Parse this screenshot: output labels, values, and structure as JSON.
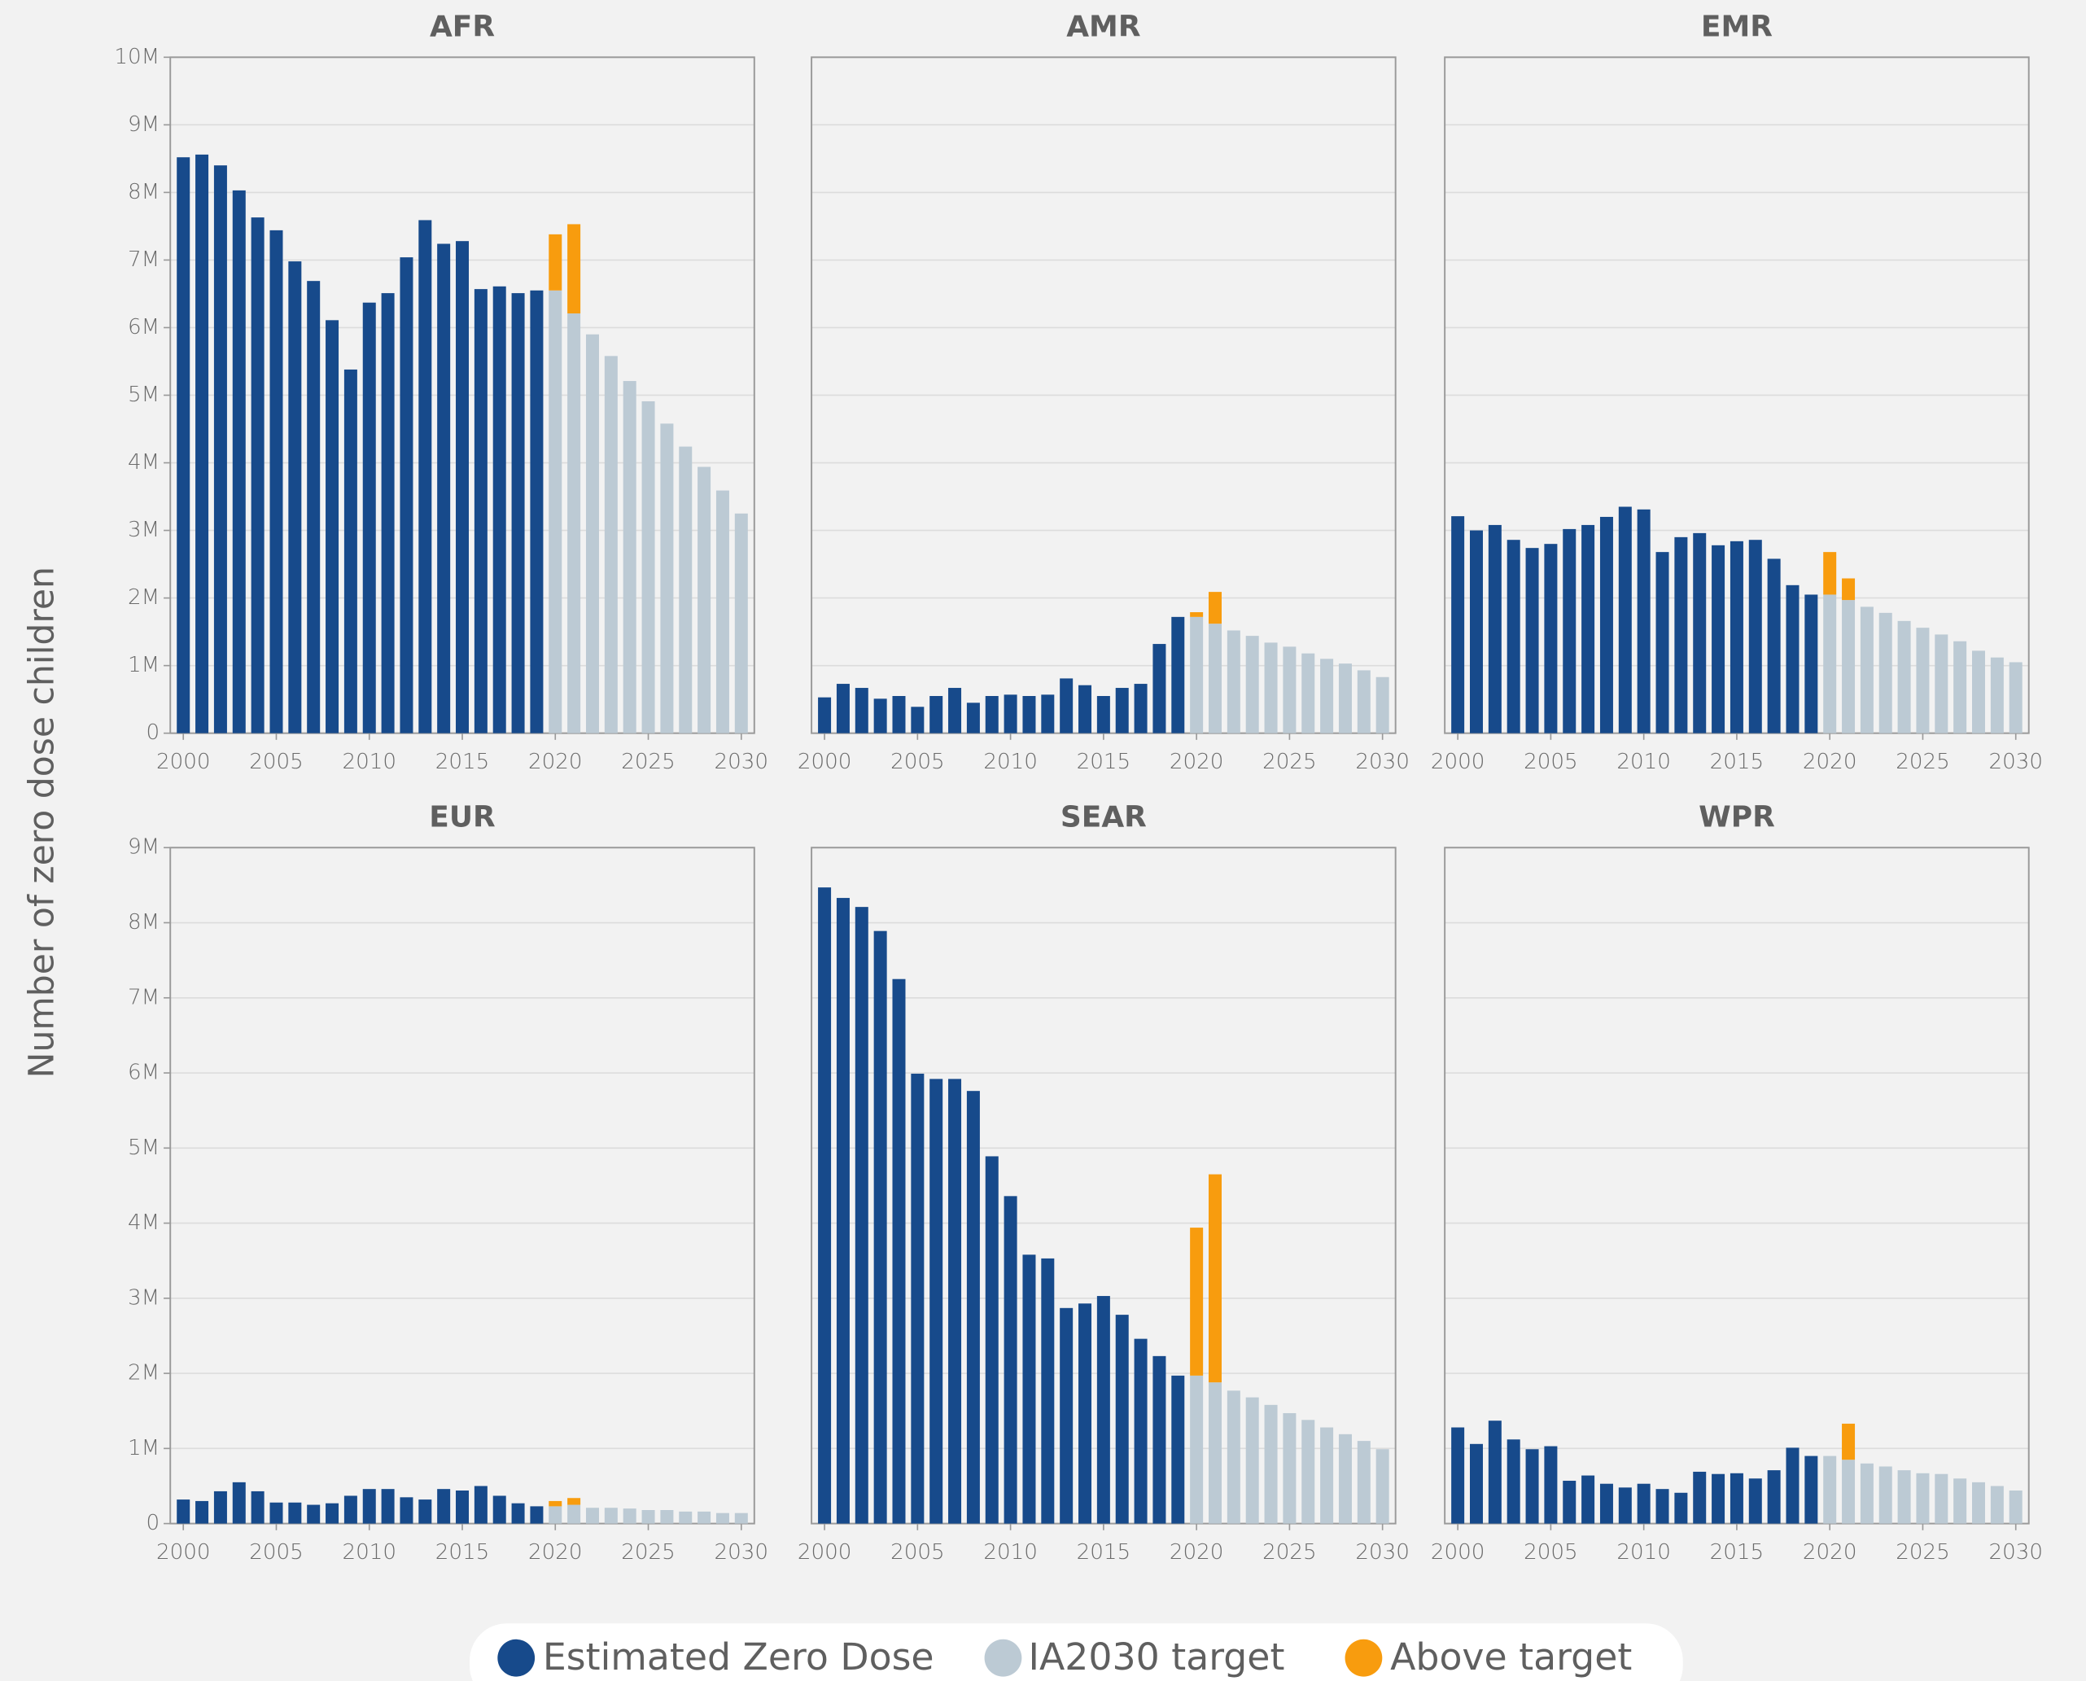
{
  "chart_data": [
    {
      "type": "bar",
      "title": "AFR",
      "ylabel": "Number of zero dose children",
      "x": [
        2000,
        2001,
        2002,
        2003,
        2004,
        2005,
        2006,
        2007,
        2008,
        2009,
        2010,
        2011,
        2012,
        2013,
        2014,
        2015,
        2016,
        2017,
        2018,
        2019,
        2020,
        2021,
        2022,
        2023,
        2024,
        2025,
        2026,
        2027,
        2028,
        2029,
        2030
      ],
      "xlim": [
        1999.3,
        2030.7
      ],
      "xticks": [
        2000,
        2005,
        2010,
        2015,
        2020,
        2025,
        2030
      ],
      "ylim": [
        0,
        10000000
      ],
      "show_ytick_labels": true,
      "grid": true,
      "yticks": [
        0,
        {
          "value": 1000000,
          "label": "1M"
        },
        {
          "value": 2000000,
          "label": "2M"
        },
        {
          "value": 3000000,
          "label": "3M"
        },
        {
          "value": 4000000,
          "label": "4M"
        },
        {
          "value": 5000000,
          "label": "5M"
        },
        {
          "value": 6000000,
          "label": "6M"
        },
        {
          "value": 7000000,
          "label": "7M"
        },
        {
          "value": 8000000,
          "label": "8M"
        },
        {
          "value": 9000000,
          "label": "9M"
        },
        {
          "value": 10000000,
          "label": "10M"
        }
      ],
      "series": [
        {
          "name": "Estimated Zero Dose",
          "color": "#174a8b",
          "values": [
            8520000,
            8560000,
            8400000,
            8030000,
            7630000,
            7440000,
            6980000,
            6690000,
            6110000,
            5380000,
            6370000,
            6510000,
            7040000,
            7590000,
            7240000,
            7280000,
            6570000,
            6610000,
            6510000,
            6550000,
            null,
            null,
            null,
            null,
            null,
            null,
            null,
            null,
            null,
            null,
            null
          ]
        },
        {
          "name": "IA2030 target",
          "color": "#bccad4",
          "values": [
            null,
            null,
            null,
            null,
            null,
            null,
            null,
            null,
            null,
            null,
            null,
            null,
            null,
            null,
            null,
            null,
            null,
            null,
            null,
            null,
            6550000,
            6210000,
            5900000,
            5580000,
            5210000,
            4910000,
            4580000,
            4240000,
            3940000,
            3590000,
            3250000
          ]
        },
        {
          "name": "Above target",
          "color": "#f89c0e",
          "values": [
            null,
            null,
            null,
            null,
            null,
            null,
            null,
            null,
            null,
            null,
            null,
            null,
            null,
            null,
            null,
            null,
            null,
            null,
            null,
            null,
            830000,
            1320000,
            null,
            null,
            null,
            null,
            null,
            null,
            null,
            null,
            null
          ]
        }
      ]
    },
    {
      "type": "bar",
      "title": "AMR",
      "x": [
        2000,
        2001,
        2002,
        2003,
        2004,
        2005,
        2006,
        2007,
        2008,
        2009,
        2010,
        2011,
        2012,
        2013,
        2014,
        2015,
        2016,
        2017,
        2018,
        2019,
        2020,
        2021,
        2022,
        2023,
        2024,
        2025,
        2026,
        2027,
        2028,
        2029,
        2030
      ],
      "xlim": [
        1999.3,
        2030.7
      ],
      "xticks": [
        2000,
        2005,
        2010,
        2015,
        2020,
        2025,
        2030
      ],
      "ylim": [
        0,
        10000000
      ],
      "show_ytick_labels": false,
      "grid": true,
      "yticks": [
        0,
        1000000,
        2000000,
        3000000,
        4000000,
        5000000,
        6000000,
        7000000,
        8000000,
        9000000,
        10000000
      ],
      "series": [
        {
          "name": "Estimated Zero Dose",
          "color": "#174a8b",
          "values": [
            530000,
            730000,
            670000,
            510000,
            550000,
            390000,
            550000,
            670000,
            450000,
            550000,
            570000,
            550000,
            570000,
            810000,
            710000,
            550000,
            670000,
            730000,
            1320000,
            1720000,
            null,
            null,
            null,
            null,
            null,
            null,
            null,
            null,
            null,
            null,
            null
          ]
        },
        {
          "name": "IA2030 target",
          "color": "#bccad4",
          "values": [
            null,
            null,
            null,
            null,
            null,
            null,
            null,
            null,
            null,
            null,
            null,
            null,
            null,
            null,
            null,
            null,
            null,
            null,
            null,
            null,
            1720000,
            1620000,
            1520000,
            1440000,
            1340000,
            1280000,
            1180000,
            1100000,
            1030000,
            930000,
            830000
          ]
        },
        {
          "name": "Above target",
          "color": "#f89c0e",
          "values": [
            null,
            null,
            null,
            null,
            null,
            null,
            null,
            null,
            null,
            null,
            null,
            null,
            null,
            null,
            null,
            null,
            null,
            null,
            null,
            null,
            70000,
            470000,
            null,
            null,
            null,
            null,
            null,
            null,
            null,
            null,
            null
          ]
        }
      ]
    },
    {
      "type": "bar",
      "title": "EMR",
      "x": [
        2000,
        2001,
        2002,
        2003,
        2004,
        2005,
        2006,
        2007,
        2008,
        2009,
        2010,
        2011,
        2012,
        2013,
        2014,
        2015,
        2016,
        2017,
        2018,
        2019,
        2020,
        2021,
        2022,
        2023,
        2024,
        2025,
        2026,
        2027,
        2028,
        2029,
        2030
      ],
      "xlim": [
        1999.3,
        2030.7
      ],
      "xticks": [
        2000,
        2005,
        2010,
        2015,
        2020,
        2025,
        2030
      ],
      "ylim": [
        0,
        10000000
      ],
      "show_ytick_labels": false,
      "grid": true,
      "yticks": [
        0,
        1000000,
        2000000,
        3000000,
        4000000,
        5000000,
        6000000,
        7000000,
        8000000,
        9000000,
        10000000
      ],
      "series": [
        {
          "name": "Estimated Zero Dose",
          "color": "#174a8b",
          "values": [
            3210000,
            3000000,
            3080000,
            2860000,
            2740000,
            2800000,
            3020000,
            3080000,
            3200000,
            3350000,
            3310000,
            2680000,
            2900000,
            2960000,
            2780000,
            2840000,
            2860000,
            2580000,
            2190000,
            2050000,
            null,
            null,
            null,
            null,
            null,
            null,
            null,
            null,
            null,
            null,
            null
          ]
        },
        {
          "name": "IA2030 target",
          "color": "#bccad4",
          "values": [
            null,
            null,
            null,
            null,
            null,
            null,
            null,
            null,
            null,
            null,
            null,
            null,
            null,
            null,
            null,
            null,
            null,
            null,
            null,
            null,
            2050000,
            1970000,
            1870000,
            1780000,
            1660000,
            1560000,
            1460000,
            1360000,
            1220000,
            1120000,
            1050000
          ]
        },
        {
          "name": "Above target",
          "color": "#f89c0e",
          "values": [
            null,
            null,
            null,
            null,
            null,
            null,
            null,
            null,
            null,
            null,
            null,
            null,
            null,
            null,
            null,
            null,
            null,
            null,
            null,
            null,
            630000,
            320000,
            null,
            null,
            null,
            null,
            null,
            null,
            null,
            null,
            null
          ]
        }
      ]
    },
    {
      "type": "bar",
      "title": "EUR",
      "x": [
        2000,
        2001,
        2002,
        2003,
        2004,
        2005,
        2006,
        2007,
        2008,
        2009,
        2010,
        2011,
        2012,
        2013,
        2014,
        2015,
        2016,
        2017,
        2018,
        2019,
        2020,
        2021,
        2022,
        2023,
        2024,
        2025,
        2026,
        2027,
        2028,
        2029,
        2030
      ],
      "xlim": [
        1999.3,
        2030.7
      ],
      "xticks": [
        2000,
        2005,
        2010,
        2015,
        2020,
        2025,
        2030
      ],
      "ylim": [
        0,
        9000000
      ],
      "show_ytick_labels": true,
      "grid": true,
      "yticks": [
        0,
        {
          "value": 1000000,
          "label": "1M"
        },
        {
          "value": 2000000,
          "label": "2M"
        },
        {
          "value": 3000000,
          "label": "3M"
        },
        {
          "value": 4000000,
          "label": "4M"
        },
        {
          "value": 5000000,
          "label": "5M"
        },
        {
          "value": 6000000,
          "label": "6M"
        },
        {
          "value": 7000000,
          "label": "7M"
        },
        {
          "value": 8000000,
          "label": "8M"
        },
        {
          "value": 9000000,
          "label": "9M"
        }
      ],
      "series": [
        {
          "name": "Estimated Zero Dose",
          "color": "#174a8b",
          "values": [
            320000,
            300000,
            430000,
            550000,
            430000,
            280000,
            280000,
            250000,
            270000,
            370000,
            460000,
            460000,
            350000,
            320000,
            460000,
            440000,
            500000,
            370000,
            270000,
            230000,
            null,
            null,
            null,
            null,
            null,
            null,
            null,
            null,
            null,
            null,
            null
          ]
        },
        {
          "name": "IA2030 target",
          "color": "#bccad4",
          "values": [
            null,
            null,
            null,
            null,
            null,
            null,
            null,
            null,
            null,
            null,
            null,
            null,
            null,
            null,
            null,
            null,
            null,
            null,
            null,
            null,
            230000,
            250000,
            210000,
            210000,
            200000,
            180000,
            180000,
            160000,
            160000,
            140000,
            140000
          ]
        },
        {
          "name": "Above target",
          "color": "#f89c0e",
          "values": [
            null,
            null,
            null,
            null,
            null,
            null,
            null,
            null,
            null,
            null,
            null,
            null,
            null,
            null,
            null,
            null,
            null,
            null,
            null,
            null,
            70000,
            90000,
            null,
            null,
            null,
            null,
            null,
            null,
            null,
            null,
            null
          ]
        }
      ]
    },
    {
      "type": "bar",
      "title": "SEAR",
      "x": [
        2000,
        2001,
        2002,
        2003,
        2004,
        2005,
        2006,
        2007,
        2008,
        2009,
        2010,
        2011,
        2012,
        2013,
        2014,
        2015,
        2016,
        2017,
        2018,
        2019,
        2020,
        2021,
        2022,
        2023,
        2024,
        2025,
        2026,
        2027,
        2028,
        2029,
        2030
      ],
      "xlim": [
        1999.3,
        2030.7
      ],
      "xticks": [
        2000,
        2005,
        2010,
        2015,
        2020,
        2025,
        2030
      ],
      "ylim": [
        0,
        9000000
      ],
      "show_ytick_labels": false,
      "grid": true,
      "yticks": [
        0,
        1000000,
        2000000,
        3000000,
        4000000,
        5000000,
        6000000,
        7000000,
        8000000,
        9000000
      ],
      "series": [
        {
          "name": "Estimated Zero Dose",
          "color": "#174a8b",
          "values": [
            8470000,
            8330000,
            8210000,
            7890000,
            7250000,
            5990000,
            5920000,
            5920000,
            5760000,
            4890000,
            4360000,
            3580000,
            3530000,
            2870000,
            2930000,
            3030000,
            2780000,
            2460000,
            2230000,
            1970000,
            null,
            null,
            null,
            null,
            null,
            null,
            null,
            null,
            null,
            null,
            null
          ]
        },
        {
          "name": "IA2030 target",
          "color": "#bccad4",
          "values": [
            null,
            null,
            null,
            null,
            null,
            null,
            null,
            null,
            null,
            null,
            null,
            null,
            null,
            null,
            null,
            null,
            null,
            null,
            null,
            null,
            1970000,
            1880000,
            1770000,
            1680000,
            1580000,
            1470000,
            1380000,
            1280000,
            1190000,
            1100000,
            990000
          ]
        },
        {
          "name": "Above target",
          "color": "#f89c0e",
          "values": [
            null,
            null,
            null,
            null,
            null,
            null,
            null,
            null,
            null,
            null,
            null,
            null,
            null,
            null,
            null,
            null,
            null,
            null,
            null,
            null,
            1970000,
            2770000,
            null,
            null,
            null,
            null,
            null,
            null,
            null,
            null,
            null
          ]
        }
      ]
    },
    {
      "type": "bar",
      "title": "WPR",
      "x": [
        2000,
        2001,
        2002,
        2003,
        2004,
        2005,
        2006,
        2007,
        2008,
        2009,
        2010,
        2011,
        2012,
        2013,
        2014,
        2015,
        2016,
        2017,
        2018,
        2019,
        2020,
        2021,
        2022,
        2023,
        2024,
        2025,
        2026,
        2027,
        2028,
        2029,
        2030
      ],
      "xlim": [
        1999.3,
        2030.7
      ],
      "xticks": [
        2000,
        2005,
        2010,
        2015,
        2020,
        2025,
        2030
      ],
      "ylim": [
        0,
        9000000
      ],
      "show_ytick_labels": false,
      "grid": true,
      "yticks": [
        0,
        1000000,
        2000000,
        3000000,
        4000000,
        5000000,
        6000000,
        7000000,
        8000000,
        9000000
      ],
      "series": [
        {
          "name": "Estimated Zero Dose",
          "color": "#174a8b",
          "values": [
            1280000,
            1060000,
            1370000,
            1120000,
            990000,
            1030000,
            570000,
            640000,
            530000,
            480000,
            530000,
            460000,
            410000,
            690000,
            660000,
            670000,
            600000,
            710000,
            1010000,
            900000,
            null,
            null,
            null,
            null,
            null,
            null,
            null,
            null,
            null,
            null,
            null
          ]
        },
        {
          "name": "IA2030 target",
          "color": "#bccad4",
          "values": [
            null,
            null,
            null,
            null,
            null,
            null,
            null,
            null,
            null,
            null,
            null,
            null,
            null,
            null,
            null,
            null,
            null,
            null,
            null,
            null,
            900000,
            850000,
            800000,
            760000,
            710000,
            670000,
            660000,
            600000,
            550000,
            500000,
            440000
          ]
        },
        {
          "name": "Above target",
          "color": "#f89c0e",
          "values": [
            null,
            null,
            null,
            null,
            null,
            null,
            null,
            null,
            null,
            null,
            null,
            null,
            null,
            null,
            null,
            null,
            null,
            null,
            null,
            null,
            null,
            480000,
            null,
            null,
            null,
            null,
            null,
            null,
            null,
            null,
            null
          ]
        }
      ]
    }
  ]
}
